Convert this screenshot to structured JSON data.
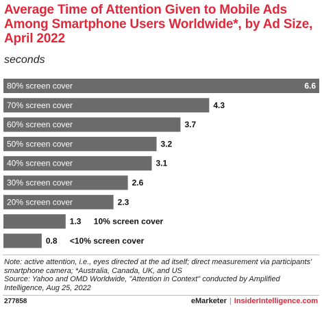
{
  "header": {
    "title": "Average Time of Attention Given to Mobile Ads Among Smartphone Users Worldwide*, by Ad Size, April 2022",
    "subtitle": "seconds"
  },
  "chart_data": {
    "type": "bar",
    "orientation": "horizontal",
    "title": "Average Time of Attention Given to Mobile Ads Among Smartphone Users Worldwide*, by Ad Size, April 2022",
    "units": "seconds",
    "categories": [
      "80% screen cover",
      "70% screen cover",
      "60% screen cover",
      "50% screen cover",
      "40% screen cover",
      "30% screen cover",
      "20% screen cover",
      "10% screen cover",
      "<10% screen cover"
    ],
    "values": [
      6.6,
      4.3,
      3.7,
      3.2,
      3.1,
      2.6,
      2.3,
      1.3,
      0.8
    ],
    "value_labels": [
      "6.6",
      "4.3",
      "3.7",
      "3.2",
      "3.1",
      "2.6",
      "2.3",
      "1.3",
      "0.8"
    ],
    "xlim": [
      0,
      6.6
    ],
    "grid": false,
    "legend": "none",
    "bar_color": "#6b6b6b",
    "label_color_inside": "#ffffff",
    "label_color_outside": "#111111"
  },
  "note": "Note: active attention, i.e., eyes directed at the ad itself; direct measurement via participants' smartphone camera; *Australia, Canada, UK, and US",
  "source": "Source: Yahoo and OMD Worldwide, \"Attention in Context\" conducted by Amplified Intelligence, Aug 25, 2022",
  "footer": {
    "chart_id": "277858",
    "brand": "eMarketer",
    "separator": "|",
    "brand2": "InsiderIntelligence.com",
    "accent_color": "#e0283b"
  }
}
